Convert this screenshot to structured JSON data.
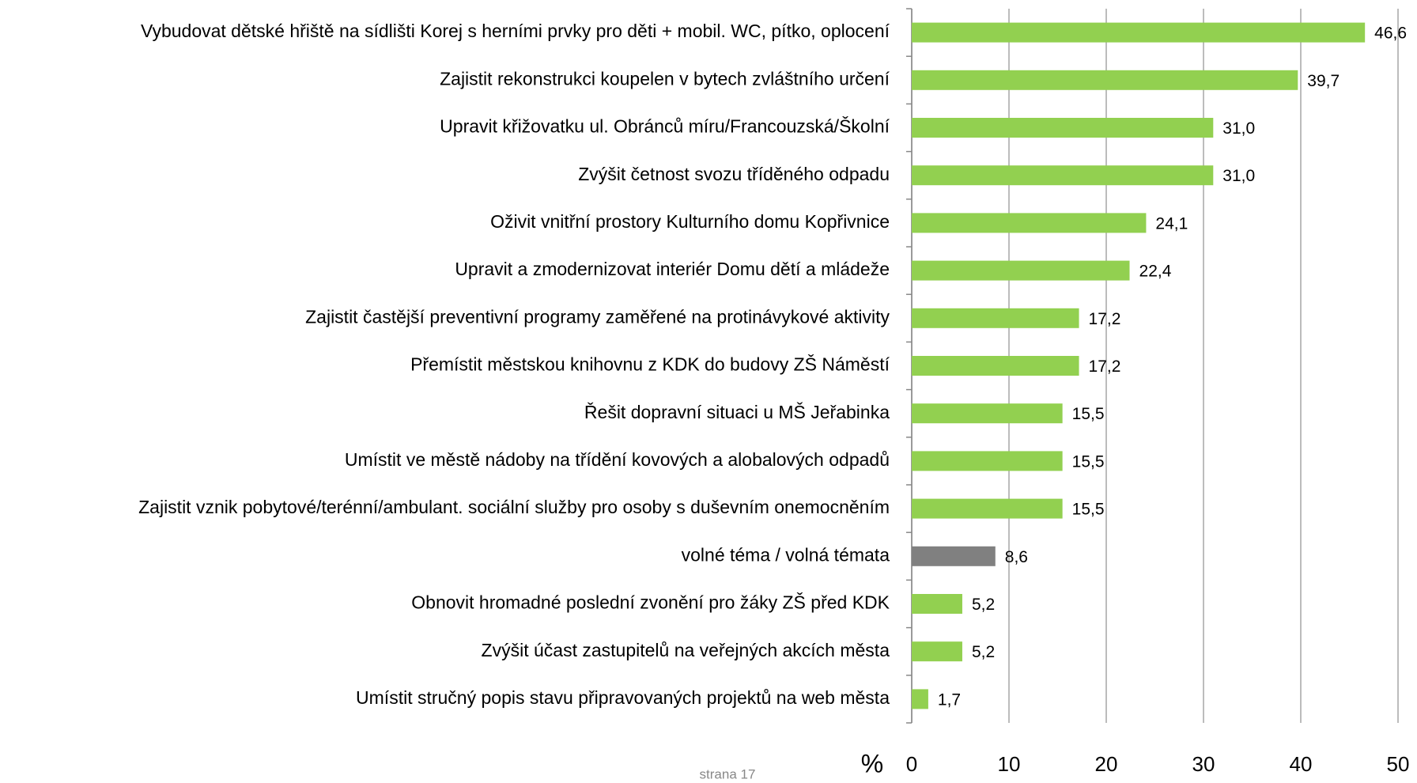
{
  "chart_data": {
    "type": "bar",
    "orientation": "horizontal",
    "categories": [
      "Vybudovat dětské hřiště na sídlišti Korej s herními prvky pro děti + mobil. WC, pítko, oplocení",
      "Zajistit rekonstrukci koupelen v bytech zvláštního určení",
      "Upravit křižovatku ul. Obránců míru/Francouzská/Školní",
      "Zvýšit četnost svozu tříděného odpadu",
      "Oživit vnitřní prostory Kulturního domu Kopřivnice",
      "Upravit a zmodernizovat interiér Domu dětí a mládeže",
      "Zajistit častější preventivní programy zaměřené na protinávykové aktivity",
      "Přemístit městskou knihovnu z KDK do budovy ZŠ Náměstí",
      "Řešit dopravní situaci u MŠ Jeřabinka",
      "Umístit ve městě nádoby na třídění kovových a alobalových odpadů",
      "Zajistit vznik pobytové/terénní/ambulant. sociální služby pro osoby s duševním onemocněním",
      "volné téma / volná témata",
      "Obnovit hromadné poslední zvonění pro žáky ZŠ před KDK",
      "Zvýšit účast zastupitelů na veřejných akcích města",
      "Umístit stručný popis stavu připravovaných projektů na web města"
    ],
    "values": [
      46.6,
      39.7,
      31.0,
      31.0,
      24.1,
      22.4,
      17.2,
      17.2,
      15.5,
      15.5,
      15.5,
      8.6,
      5.2,
      5.2,
      1.7
    ],
    "value_labels": [
      "46,6",
      "39,7",
      "31,0",
      "31,0",
      "24,1",
      "22,4",
      "17,2",
      "17,2",
      "15,5",
      "15,5",
      "15,5",
      "8,6",
      "5,2",
      "5,2",
      "1,7"
    ],
    "colors": [
      "#92d050",
      "#92d050",
      "#92d050",
      "#92d050",
      "#92d050",
      "#92d050",
      "#92d050",
      "#92d050",
      "#92d050",
      "#92d050",
      "#92d050",
      "#808080",
      "#92d050",
      "#92d050",
      "#92d050"
    ],
    "x_label": "%",
    "xlim": [
      0,
      50
    ],
    "xticks": [
      0,
      10,
      20,
      30,
      40,
      50
    ],
    "grid": true
  },
  "footer": "strana 17"
}
